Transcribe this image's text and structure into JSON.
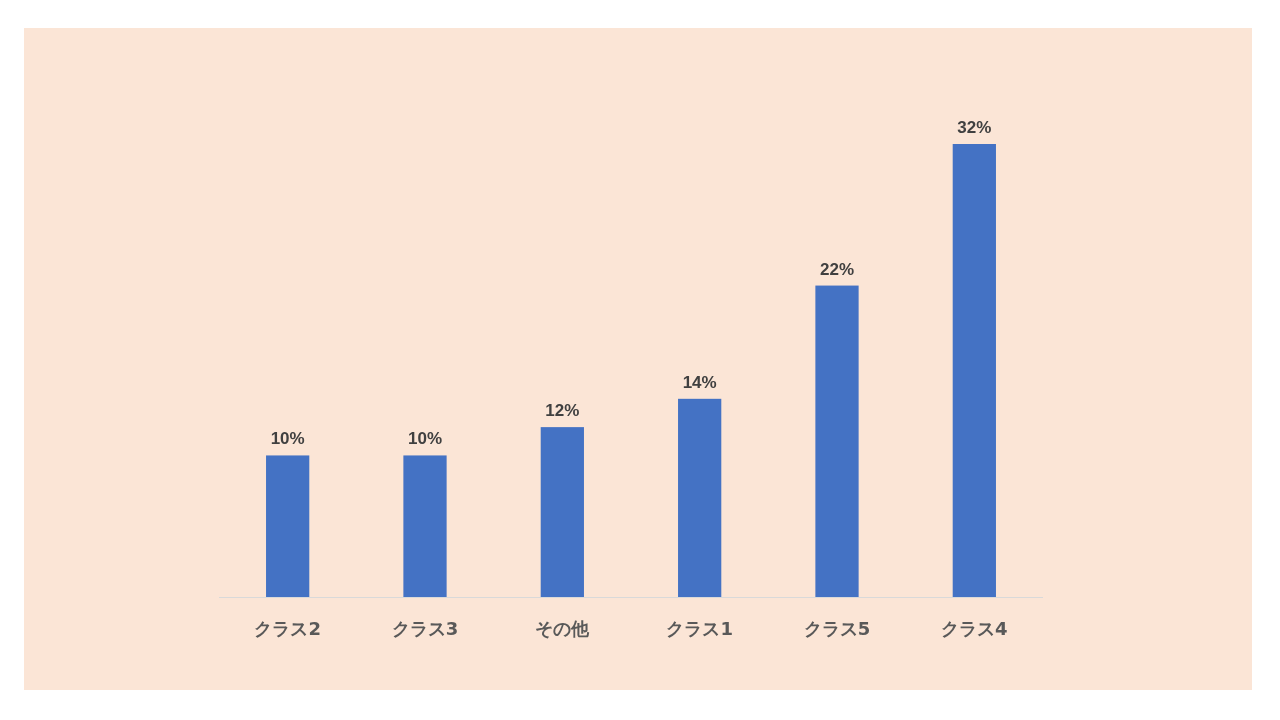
{
  "chart_data": {
    "type": "bar",
    "categories": [
      "クラス2",
      "クラス3",
      "その他",
      "クラス1",
      "クラス5",
      "クラス4"
    ],
    "values": [
      10,
      10,
      12,
      14,
      22,
      32
    ],
    "color": "#4472c4",
    "value_labels": [
      "10%",
      "10%",
      "12%",
      "14%",
      "22%",
      "32%"
    ]
  }
}
